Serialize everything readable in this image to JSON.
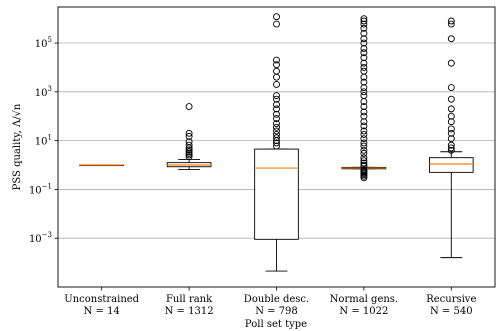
{
  "chart_data": {
    "type": "box",
    "ylabel": "PSS quality, Λ/√n",
    "xlabel": "Poll set type",
    "yscale": "log",
    "ylim": [
      1e-05,
      3000000
    ],
    "grid": "y-major",
    "yticks": [
      {
        "value": 0.001,
        "base": "10",
        "exp": "−3"
      },
      {
        "value": 0.1,
        "base": "10",
        "exp": "−1"
      },
      {
        "value": 10,
        "base": "10",
        "exp": "1"
      },
      {
        "value": 1000,
        "base": "10",
        "exp": "3"
      },
      {
        "value": 100000,
        "base": "10",
        "exp": "5"
      }
    ],
    "categories": [
      {
        "name": "Unconstrained",
        "n_label": "N = 14",
        "whislo": 1.0,
        "q1": 1.0,
        "median": 1.0,
        "q3": 1.0,
        "whishi": 1.0,
        "fliers": []
      },
      {
        "name": "Full rank",
        "n_label": "N = 1312",
        "whislo": 0.65,
        "q1": 0.85,
        "median": 1.0,
        "q3": 1.25,
        "whishi": 1.7,
        "fliers": [
          2.2,
          2.6,
          3.0,
          3.5,
          4.2,
          5.0,
          6.5,
          9.0,
          15,
          20,
          250
        ]
      },
      {
        "name": "Double desc.",
        "n_label": "N = 798",
        "whislo": 4.5e-05,
        "q1": 0.0009,
        "median": 0.75,
        "q3": 4.5,
        "whishi": 4.5,
        "fliers": [
          6,
          8,
          10,
          13,
          18,
          25,
          35,
          50,
          80,
          120,
          200,
          300,
          500,
          700,
          2000,
          4000,
          7000,
          13000,
          20000,
          600000,
          1200000
        ]
      },
      {
        "name": "Normal gens.",
        "n_label": "N = 1022",
        "whislo": 0.7,
        "q1": 0.7,
        "median": 0.75,
        "q3": 0.8,
        "whishi": 0.8,
        "fliers": [
          0.3,
          0.35,
          0.4,
          0.45,
          0.5,
          0.55,
          0.6,
          0.65,
          0.9,
          1.0,
          1.2,
          1.5,
          2,
          3,
          4,
          6,
          8,
          12,
          18,
          25,
          40,
          60,
          100,
          150,
          250,
          400,
          700,
          1000,
          1500,
          2500,
          4000,
          7000,
          10000,
          15000,
          25000,
          40000,
          60000,
          100000,
          150000,
          250000,
          400000,
          600000,
          800000,
          1000000
        ]
      },
      {
        "name": "Recursive",
        "n_label": "N = 540",
        "whislo": 0.00016,
        "q1": 0.5,
        "median": 1.1,
        "q3": 2.0,
        "whishi": 3.5,
        "fliers": [
          4,
          5,
          6.5,
          12,
          20,
          30,
          60,
          100,
          200,
          500,
          1500,
          15000,
          150000,
          600000,
          800000
        ]
      }
    ]
  }
}
